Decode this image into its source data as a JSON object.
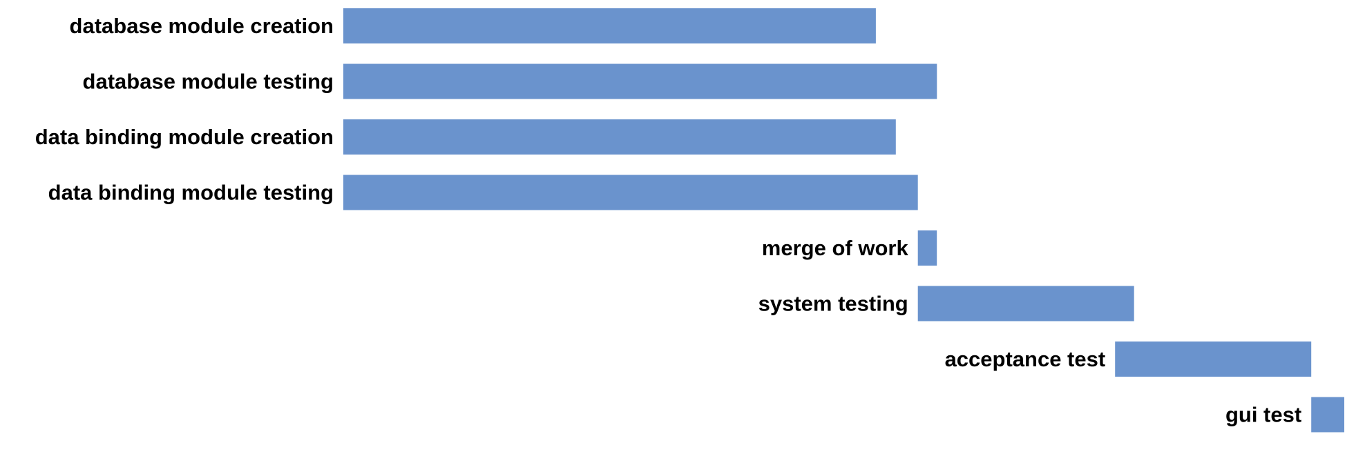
{
  "chart_data": {
    "type": "bar",
    "orientation": "horizontal",
    "subtype": "gantt",
    "title": "",
    "xlabel": "",
    "ylabel": "",
    "x_axis_visible": false,
    "grid": false,
    "legend": "none",
    "bar_color": "#6a93cd",
    "label_placement": "left-of-bar",
    "xlim": [
      0,
      100
    ],
    "tasks": [
      {
        "label": "database module creation",
        "start": 0.0,
        "end": 53.2
      },
      {
        "label": "database module testing",
        "start": 0.0,
        "end": 59.3
      },
      {
        "label": "data binding module creation",
        "start": 0.0,
        "end": 55.2
      },
      {
        "label": "data binding module testing",
        "start": 0.0,
        "end": 57.4
      },
      {
        "label": "merge of work",
        "start": 57.4,
        "end": 59.3
      },
      {
        "label": "system testing",
        "start": 57.4,
        "end": 79.0
      },
      {
        "label": "acceptance test",
        "start": 77.1,
        "end": 96.7
      },
      {
        "label": "gui test",
        "start": 96.7,
        "end": 100.0
      }
    ]
  }
}
